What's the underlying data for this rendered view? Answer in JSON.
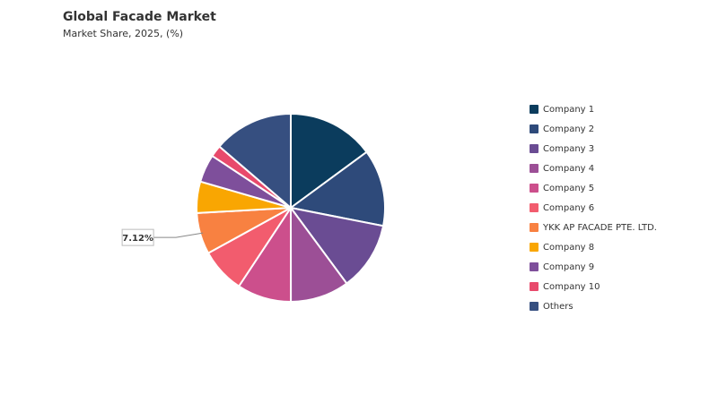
{
  "chart_data": {
    "type": "pie",
    "title": "Global Facade Market",
    "subtitle": "Market Share, 2025, (%)",
    "categories": [
      "Company 1",
      "Company 2",
      "Company 3",
      "Company 4",
      "Company 5",
      "Company 6",
      "YKK AP FACADE PTE. LTD.",
      "Company 8",
      "Company 9",
      "Company 10",
      "Others"
    ],
    "values": [
      14.9,
      13.2,
      11.8,
      10.1,
      9.3,
      7.7,
      7.12,
      5.4,
      4.8,
      2.0,
      13.7
    ],
    "value_labels": [
      null,
      null,
      null,
      null,
      null,
      null,
      "7.12%",
      null,
      null,
      null,
      null
    ],
    "colors": [
      "#0b3c5d",
      "#2e4a7a",
      "#6a4c93",
      "#9c4f96",
      "#cc4f8c",
      "#f25c6e",
      "#f88141",
      "#f9a602",
      "#7e4f9b",
      "#e84a6c",
      "#364f80"
    ],
    "legend": "right"
  }
}
